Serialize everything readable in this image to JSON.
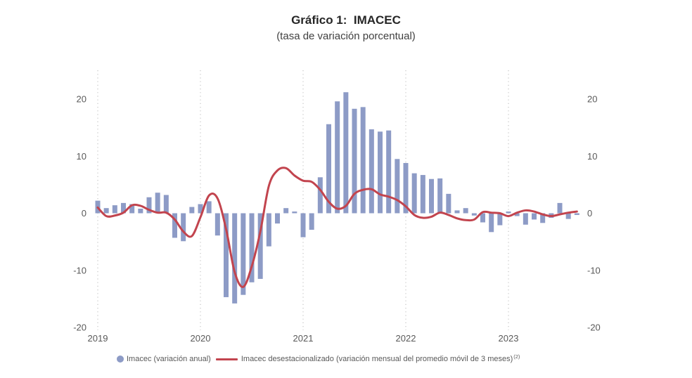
{
  "chart_data": {
    "type": "bar",
    "title": "Gráfico 1:  IMACEC",
    "subtitle": "(tasa de variación porcentual)",
    "x": [
      "2019-01",
      "2019-02",
      "2019-03",
      "2019-04",
      "2019-05",
      "2019-06",
      "2019-07",
      "2019-08",
      "2019-09",
      "2019-10",
      "2019-11",
      "2019-12",
      "2020-01",
      "2020-02",
      "2020-03",
      "2020-04",
      "2020-05",
      "2020-06",
      "2020-07",
      "2020-08",
      "2020-09",
      "2020-10",
      "2020-11",
      "2020-12",
      "2021-01",
      "2021-02",
      "2021-03",
      "2021-04",
      "2021-05",
      "2021-06",
      "2021-07",
      "2021-08",
      "2021-09",
      "2021-10",
      "2021-11",
      "2021-12",
      "2022-01",
      "2022-02",
      "2022-03",
      "2022-04",
      "2022-05",
      "2022-06",
      "2022-07",
      "2022-08",
      "2022-09",
      "2022-10",
      "2022-11",
      "2022-12",
      "2023-01",
      "2023-02",
      "2023-03",
      "2023-04",
      "2023-05",
      "2023-06",
      "2023-07",
      "2023-08",
      "2023-09"
    ],
    "x_tick_labels": [
      "2019",
      "2020",
      "2021",
      "2022",
      "2023"
    ],
    "ylim": [
      -20,
      20
    ],
    "y_ticks": [
      20,
      10,
      0,
      -10,
      -20
    ],
    "y_tick_labels": [
      "20",
      "10",
      "0",
      "-10",
      "-20"
    ],
    "y2_tick_labels": [
      "20",
      "10",
      "0",
      "-10",
      "-20"
    ],
    "x_grid": true,
    "y_grid": false,
    "legend_position": "bottom",
    "series": [
      {
        "name": "Imacec (variación anual)",
        "type": "bar",
        "color": "#8d9bc6",
        "values": [
          2.2,
          0.9,
          1.4,
          1.8,
          1.6,
          0.8,
          2.8,
          3.6,
          3.2,
          -4.3,
          -4.9,
          1.1,
          1.6,
          2.1,
          -3.9,
          -14.7,
          -15.8,
          -14.3,
          -12.1,
          -11.5,
          -5.8,
          -1.8,
          0.9,
          0.3,
          -4.2,
          -2.9,
          6.3,
          15.6,
          19.6,
          21.2,
          18.3,
          18.6,
          14.7,
          14.3,
          14.5,
          9.5,
          8.8,
          7.0,
          6.7,
          6.0,
          6.1,
          3.4,
          0.5,
          0.9,
          -0.4,
          -1.6,
          -3.3,
          -2.1,
          0.3,
          -0.5,
          -2.0,
          -1.1,
          -1.7,
          -0.8,
          1.8,
          -1.0,
          -0.3
        ]
      },
      {
        "name": "Imacec desestacionalizado (variación mensual del promedio móvil de 3 meses)",
        "name_note": "(2)",
        "type": "line",
        "color": "#c2444e",
        "values": [
          1.0,
          -0.5,
          -0.4,
          0.1,
          1.4,
          1.3,
          0.6,
          0.1,
          0.1,
          -1.1,
          -3.2,
          -4.0,
          -0.7,
          3.1,
          2.6,
          -2.8,
          -10.3,
          -12.9,
          -9.3,
          -3.2,
          4.8,
          7.5,
          7.9,
          6.6,
          5.7,
          5.5,
          4.1,
          2.0,
          0.8,
          1.3,
          3.4,
          4.1,
          4.2,
          3.3,
          2.9,
          2.3,
          1.2,
          -0.3,
          -0.8,
          -0.6,
          0.1,
          -0.3,
          -0.9,
          -1.2,
          -1.1,
          0.2,
          0.1,
          0.0,
          -0.5,
          0.1,
          0.5,
          0.3,
          -0.2,
          -0.5,
          -0.2,
          0.1,
          0.3
        ]
      }
    ]
  }
}
